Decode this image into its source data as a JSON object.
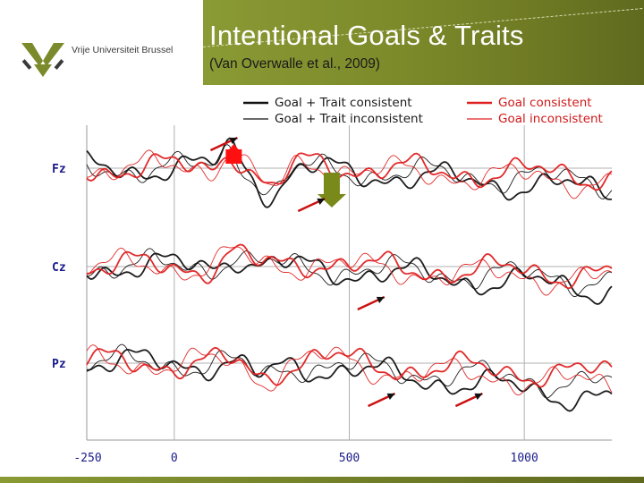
{
  "slide": {
    "title": "Intentional Goals & Traits",
    "subtitle": "(Van Overwalle et al., 2009)",
    "logo_text": "Vrije Universiteit Brussel",
    "colors": {
      "band": "#7c8a2a",
      "band_dark": "#5f6a1f"
    }
  },
  "chart_data": {
    "type": "line",
    "x_ticks": [
      "-250",
      "0",
      "500",
      "1000"
    ],
    "x_tick_values": [
      -250,
      0,
      500,
      1000
    ],
    "xlim": [
      -250,
      1250
    ],
    "grid": true,
    "legend_placement": "top",
    "channels": [
      "Fz",
      "Cz",
      "Pz"
    ],
    "series": [
      {
        "name": "Goal + Trait consistent",
        "color": "#111111",
        "width": 1.8
      },
      {
        "name": "Goal + Trait inconsistent",
        "color": "#111111",
        "width": 0.9
      },
      {
        "name": "Goal consistent",
        "color": "#e02020",
        "width": 1.8
      },
      {
        "name": "Goal inconsistent",
        "color": "#e02020",
        "width": 0.9
      }
    ],
    "markers": [
      {
        "kind": "square",
        "channel": "Fz",
        "t": 170,
        "color": "#ff1010"
      },
      {
        "kind": "down-arrow",
        "channel": "Fz",
        "t": 450,
        "color": "#7a8a1a"
      },
      {
        "kind": "arrow",
        "channel": "Fz",
        "t": 160
      },
      {
        "kind": "arrow",
        "channel": "Fz",
        "t": 410
      },
      {
        "kind": "arrow",
        "channel": "Cz",
        "t": 580
      },
      {
        "kind": "arrow",
        "channel": "Pz",
        "t": 610
      },
      {
        "kind": "arrow",
        "channel": "Pz",
        "t": 860
      }
    ]
  }
}
